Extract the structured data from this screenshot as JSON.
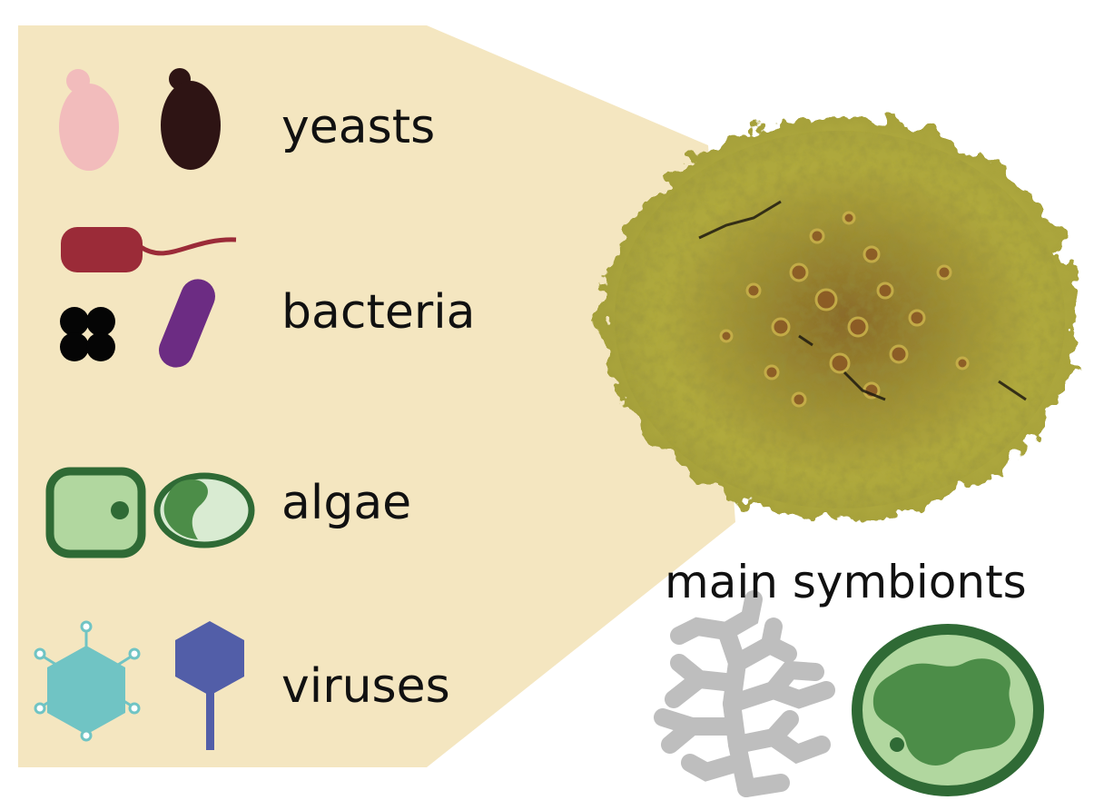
{
  "groups": {
    "yeasts": "yeasts",
    "bacteria": "bacteria",
    "algae": "algae",
    "viruses": "viruses"
  },
  "main_symbionts_label": "main symbionts",
  "colors": {
    "panel": "#f4e6c0",
    "yeast_light": "#f2bcbc",
    "yeast_dark": "#2e1414",
    "bacteria_red": "#9b2b38",
    "bacteria_black": "#050505",
    "bacteria_purple": "#6c2c83",
    "algae_dark": "#2f6a35",
    "algae_mid": "#4c8d48",
    "algae_light": "#b1d79f",
    "algae_pale": "#d9ebd2",
    "virus_teal": "#70c4c4",
    "virus_blue": "#525ea8",
    "fungus_gray": "#bebebe",
    "lichen_yellow": "#a8a43a"
  },
  "icons": [
    "yeast-cell-icon",
    "bacterium-flagellum-icon",
    "coccus-cluster-icon",
    "rod-bacterium-icon",
    "algal-cell-icon",
    "algal-cell-crescent-icon",
    "virus-capsid-icon",
    "bacteriophage-icon",
    "fungal-hyphae-icon",
    "photobiont-cell-icon"
  ]
}
